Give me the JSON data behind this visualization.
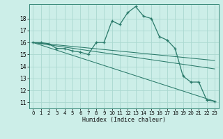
{
  "xlabel": "Humidex (Indice chaleur)",
  "background_color": "#cceee8",
  "grid_color": "#aad8d0",
  "line_color": "#2a7a6a",
  "xlim": [
    -0.5,
    23.5
  ],
  "ylim": [
    10.5,
    19.2
  ],
  "xticks": [
    0,
    1,
    2,
    3,
    4,
    5,
    6,
    7,
    8,
    9,
    10,
    11,
    12,
    13,
    14,
    15,
    16,
    17,
    18,
    19,
    20,
    21,
    22,
    23
  ],
  "yticks": [
    11,
    12,
    13,
    14,
    15,
    16,
    17,
    18
  ],
  "series": [
    {
      "x": [
        0,
        1,
        2,
        3,
        4,
        5,
        6,
        7,
        8,
        9,
        10,
        11,
        12,
        13,
        14,
        15,
        16,
        17,
        18,
        19,
        20,
        21,
        22,
        23
      ],
      "y": [
        16.0,
        16.0,
        15.9,
        15.5,
        15.5,
        15.3,
        15.2,
        15.0,
        16.0,
        16.0,
        17.8,
        17.5,
        18.5,
        19.0,
        18.2,
        18.0,
        16.5,
        16.2,
        15.5,
        13.2,
        12.7,
        12.7,
        11.2,
        11.1
      ],
      "has_markers": true
    },
    {
      "x": [
        0,
        23
      ],
      "y": [
        16.0,
        11.1
      ],
      "has_markers": false
    },
    {
      "x": [
        0,
        23
      ],
      "y": [
        16.0,
        14.5
      ],
      "has_markers": false
    },
    {
      "x": [
        0,
        23
      ],
      "y": [
        16.0,
        13.8
      ],
      "has_markers": false
    }
  ]
}
